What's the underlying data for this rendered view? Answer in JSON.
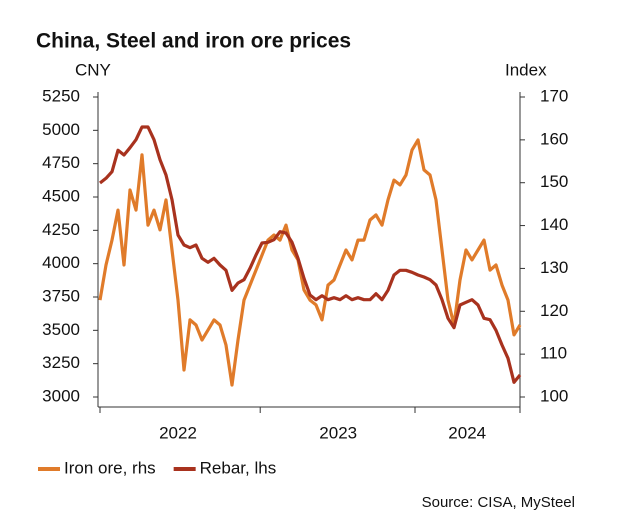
{
  "chart_data": {
    "type": "line",
    "title": "China, Steel and iron ore prices",
    "y_label": "CNY",
    "y2_label": "Index",
    "source": "Source: CISA, MySteel",
    "xlim": [
      0,
      70
    ],
    "xticks": [
      0,
      26.7,
      52.5,
      70
    ],
    "xlabels": [
      {
        "value": 13,
        "label": "2022"
      },
      {
        "value": 39.7,
        "label": "2023"
      },
      {
        "value": 61.2,
        "label": "2024"
      }
    ],
    "ylim": [
      3000,
      5250
    ],
    "yticks": [
      3000,
      3250,
      3500,
      3750,
      4000,
      4250,
      4500,
      4750,
      5000,
      5250
    ],
    "y2lim": [
      100,
      170
    ],
    "y2ticks": [
      100,
      110,
      120,
      130,
      140,
      150,
      160,
      170
    ],
    "legend": "bottom",
    "series": [
      {
        "name": "Iron ore, rhs",
        "color": "#e07b2a",
        "axis": "y2",
        "values": [
          122.6,
          130.8,
          136.6,
          143.6,
          130.8,
          148.3,
          143.6,
          156.5,
          140.1,
          143.6,
          139.0,
          146.0,
          134.3,
          122.6,
          106.3,
          118.0,
          116.8,
          113.3,
          115.6,
          118.0,
          116.8,
          112.1,
          102.8,
          113.3,
          122.6,
          126.1,
          129.6,
          133.1,
          136.6,
          137.8,
          136.6,
          140.1,
          134.3,
          132.0,
          125.0,
          122.6,
          121.5,
          118.0,
          126.1,
          127.3,
          130.8,
          134.3,
          132.0,
          136.6,
          136.6,
          141.3,
          142.5,
          140.1,
          146.0,
          150.6,
          149.5,
          151.8,
          157.6,
          160.0,
          153.0,
          151.8,
          146.0,
          134.3,
          122.6,
          116.8,
          127.3,
          134.3,
          132.0,
          134.3,
          136.6,
          129.6,
          130.8,
          126.1,
          122.6,
          114.5,
          116.8
        ]
      },
      {
        "name": "Rebar, lhs",
        "color": "#a8321e",
        "values": [
          4605,
          4640,
          4690,
          4850,
          4815,
          4870,
          4930,
          5025,
          5025,
          4930,
          4780,
          4665,
          4480,
          4215,
          4140,
          4120,
          4140,
          4040,
          4010,
          4040,
          3990,
          3950,
          3800,
          3855,
          3880,
          3965,
          4065,
          4155,
          4160,
          4180,
          4240,
          4230,
          4160,
          4040,
          3890,
          3765,
          3730,
          3760,
          3730,
          3745,
          3730,
          3760,
          3730,
          3745,
          3730,
          3730,
          3775,
          3730,
          3800,
          3915,
          3950,
          3950,
          3935,
          3915,
          3900,
          3880,
          3840,
          3730,
          3590,
          3520,
          3690,
          3710,
          3730,
          3690,
          3590,
          3580,
          3500,
          3390,
          3290,
          3110,
          3165
        ]
      }
    ]
  }
}
